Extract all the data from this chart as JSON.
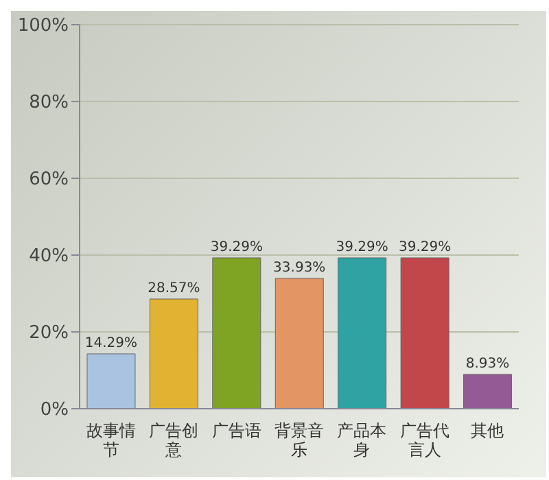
{
  "chart_data": {
    "type": "bar",
    "categories": [
      "故事情节",
      "广告创意",
      "广告语",
      "背景音乐",
      "产品本身",
      "广告代言人",
      "其他"
    ],
    "values": [
      14.29,
      28.57,
      39.29,
      33.93,
      39.29,
      39.29,
      8.93
    ],
    "colors": [
      "#a9c3e0",
      "#e2b233",
      "#7fa323",
      "#e39564",
      "#2fa3a3",
      "#c2474b",
      "#935a95"
    ],
    "value_labels": [
      "14.29%",
      "28.57%",
      "39.29%",
      "33.93%",
      "39.29%",
      "39.29%",
      "8.93%"
    ],
    "ylim": [
      0,
      100
    ],
    "yticks": [
      {
        "value": 0,
        "label": "0%"
      },
      {
        "value": 20,
        "label": "20%"
      },
      {
        "value": 40,
        "label": "40%"
      },
      {
        "value": 60,
        "label": "60%"
      },
      {
        "value": 80,
        "label": "80%"
      },
      {
        "value": 100,
        "label": "100%"
      }
    ],
    "grid": "y"
  }
}
